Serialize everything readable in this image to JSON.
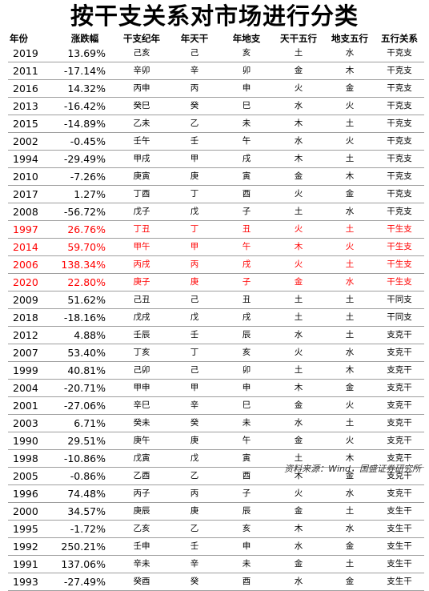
{
  "title": "按干支关系对市场进行分类",
  "headers": [
    "年份",
    "涨跌幅",
    "干支纪年",
    "年天干",
    "年地支",
    "天干五行",
    "地支五行",
    "五行关系"
  ],
  "rows": [
    {
      "year": "2019",
      "change": "13.69%",
      "ganzhi": "己亥",
      "gan": "己",
      "zhi": "亥",
      "gan_wx": "土",
      "zhi_wx": "水",
      "relation": "干克支",
      "highlight": false
    },
    {
      "year": "2011",
      "change": "-17.14%",
      "ganzhi": "辛卯",
      "gan": "辛",
      "zhi": "卯",
      "gan_wx": "金",
      "zhi_wx": "木",
      "relation": "干克支",
      "highlight": false
    },
    {
      "year": "2016",
      "change": "14.32%",
      "ganzhi": "丙申",
      "gan": "丙",
      "zhi": "申",
      "gan_wx": "火",
      "zhi_wx": "金",
      "relation": "干克支",
      "highlight": false
    },
    {
      "year": "2013",
      "change": "-16.42%",
      "ganzhi": "癸巳",
      "gan": "癸",
      "zhi": "巳",
      "gan_wx": "水",
      "zhi_wx": "火",
      "relation": "干克支",
      "highlight": false
    },
    {
      "year": "2015",
      "change": "-14.89%",
      "ganzhi": "乙未",
      "gan": "乙",
      "zhi": "未",
      "gan_wx": "木",
      "zhi_wx": "土",
      "relation": "干克支",
      "highlight": false
    },
    {
      "year": "2002",
      "change": "-0.45%",
      "ganzhi": "壬午",
      "gan": "壬",
      "zhi": "午",
      "gan_wx": "水",
      "zhi_wx": "火",
      "relation": "干克支",
      "highlight": false
    },
    {
      "year": "1994",
      "change": "-29.49%",
      "ganzhi": "甲戌",
      "gan": "甲",
      "zhi": "戌",
      "gan_wx": "木",
      "zhi_wx": "土",
      "relation": "干克支",
      "highlight": false
    },
    {
      "year": "2010",
      "change": "-7.26%",
      "ganzhi": "庚寅",
      "gan": "庚",
      "zhi": "寅",
      "gan_wx": "金",
      "zhi_wx": "木",
      "relation": "干克支",
      "highlight": false
    },
    {
      "year": "2017",
      "change": "1.27%",
      "ganzhi": "丁酉",
      "gan": "丁",
      "zhi": "酉",
      "gan_wx": "火",
      "zhi_wx": "金",
      "relation": "干克支",
      "highlight": false
    },
    {
      "year": "2008",
      "change": "-56.72%",
      "ganzhi": "戊子",
      "gan": "戊",
      "zhi": "子",
      "gan_wx": "土",
      "zhi_wx": "水",
      "relation": "干克支",
      "highlight": false
    },
    {
      "year": "1997",
      "change": "26.76%",
      "ganzhi": "丁丑",
      "gan": "丁",
      "zhi": "丑",
      "gan_wx": "火",
      "zhi_wx": "土",
      "relation": "干生支",
      "highlight": true
    },
    {
      "year": "2014",
      "change": "59.70%",
      "ganzhi": "甲午",
      "gan": "甲",
      "zhi": "午",
      "gan_wx": "木",
      "zhi_wx": "火",
      "relation": "干生支",
      "highlight": true
    },
    {
      "year": "2006",
      "change": "138.34%",
      "ganzhi": "丙戌",
      "gan": "丙",
      "zhi": "戌",
      "gan_wx": "火",
      "zhi_wx": "土",
      "relation": "干生支",
      "highlight": true
    },
    {
      "year": "2020",
      "change": "22.80%",
      "ganzhi": "庚子",
      "gan": "庚",
      "zhi": "子",
      "gan_wx": "金",
      "zhi_wx": "水",
      "relation": "干生支",
      "highlight": true
    },
    {
      "year": "2009",
      "change": "51.62%",
      "ganzhi": "己丑",
      "gan": "己",
      "zhi": "丑",
      "gan_wx": "土",
      "zhi_wx": "土",
      "relation": "干同支",
      "highlight": false
    },
    {
      "year": "2018",
      "change": "-18.16%",
      "ganzhi": "戊戌",
      "gan": "戊",
      "zhi": "戌",
      "gan_wx": "土",
      "zhi_wx": "土",
      "relation": "干同支",
      "highlight": false
    },
    {
      "year": "2012",
      "change": "4.88%",
      "ganzhi": "壬辰",
      "gan": "壬",
      "zhi": "辰",
      "gan_wx": "水",
      "zhi_wx": "土",
      "relation": "支克干",
      "highlight": false
    },
    {
      "year": "2007",
      "change": "53.40%",
      "ganzhi": "丁亥",
      "gan": "丁",
      "zhi": "亥",
      "gan_wx": "火",
      "zhi_wx": "水",
      "relation": "支克干",
      "highlight": false
    },
    {
      "year": "1999",
      "change": "40.81%",
      "ganzhi": "己卯",
      "gan": "己",
      "zhi": "卯",
      "gan_wx": "土",
      "zhi_wx": "木",
      "relation": "支克干",
      "highlight": false
    },
    {
      "year": "2004",
      "change": "-20.71%",
      "ganzhi": "甲申",
      "gan": "甲",
      "zhi": "申",
      "gan_wx": "木",
      "zhi_wx": "金",
      "relation": "支克干",
      "highlight": false
    },
    {
      "year": "2001",
      "change": "-27.06%",
      "ganzhi": "辛巳",
      "gan": "辛",
      "zhi": "巳",
      "gan_wx": "金",
      "zhi_wx": "火",
      "relation": "支克干",
      "highlight": false
    },
    {
      "year": "2003",
      "change": "6.71%",
      "ganzhi": "癸未",
      "gan": "癸",
      "zhi": "未",
      "gan_wx": "水",
      "zhi_wx": "土",
      "relation": "支克干",
      "highlight": false
    },
    {
      "year": "1990",
      "change": "29.51%",
      "ganzhi": "庚午",
      "gan": "庚",
      "zhi": "午",
      "gan_wx": "金",
      "zhi_wx": "火",
      "relation": "支克干",
      "highlight": false
    },
    {
      "year": "1998",
      "change": "-10.86%",
      "ganzhi": "戊寅",
      "gan": "戊",
      "zhi": "寅",
      "gan_wx": "土",
      "zhi_wx": "木",
      "relation": "支克干",
      "highlight": false
    },
    {
      "year": "2005",
      "change": "-0.86%",
      "ganzhi": "乙酉",
      "gan": "乙",
      "zhi": "酉",
      "gan_wx": "木",
      "zhi_wx": "金",
      "relation": "支克干",
      "highlight": false
    },
    {
      "year": "1996",
      "change": "74.48%",
      "ganzhi": "丙子",
      "gan": "丙",
      "zhi": "子",
      "gan_wx": "火",
      "zhi_wx": "水",
      "relation": "支克干",
      "highlight": false
    },
    {
      "year": "2000",
      "change": "34.57%",
      "ganzhi": "庚辰",
      "gan": "庚",
      "zhi": "辰",
      "gan_wx": "金",
      "zhi_wx": "土",
      "relation": "支生干",
      "highlight": false
    },
    {
      "year": "1995",
      "change": "-1.72%",
      "ganzhi": "乙亥",
      "gan": "乙",
      "zhi": "亥",
      "gan_wx": "木",
      "zhi_wx": "水",
      "relation": "支生干",
      "highlight": false
    },
    {
      "year": "1992",
      "change": "250.21%",
      "ganzhi": "壬申",
      "gan": "壬",
      "zhi": "申",
      "gan_wx": "水",
      "zhi_wx": "金",
      "relation": "支生干",
      "highlight": false
    },
    {
      "year": "1991",
      "change": "137.06%",
      "ganzhi": "辛未",
      "gan": "辛",
      "zhi": "未",
      "gan_wx": "金",
      "zhi_wx": "土",
      "relation": "支生干",
      "highlight": false
    },
    {
      "year": "1993",
      "change": "-27.49%",
      "ganzhi": "癸酉",
      "gan": "癸",
      "zhi": "酉",
      "gan_wx": "水",
      "zhi_wx": "金",
      "relation": "支生干",
      "highlight": false
    }
  ],
  "source": "资料来源：Wind，国盛证券研究所",
  "colors": {
    "highlight": "#ff0000",
    "text": "#000000",
    "rule": "#9e9e9e"
  }
}
